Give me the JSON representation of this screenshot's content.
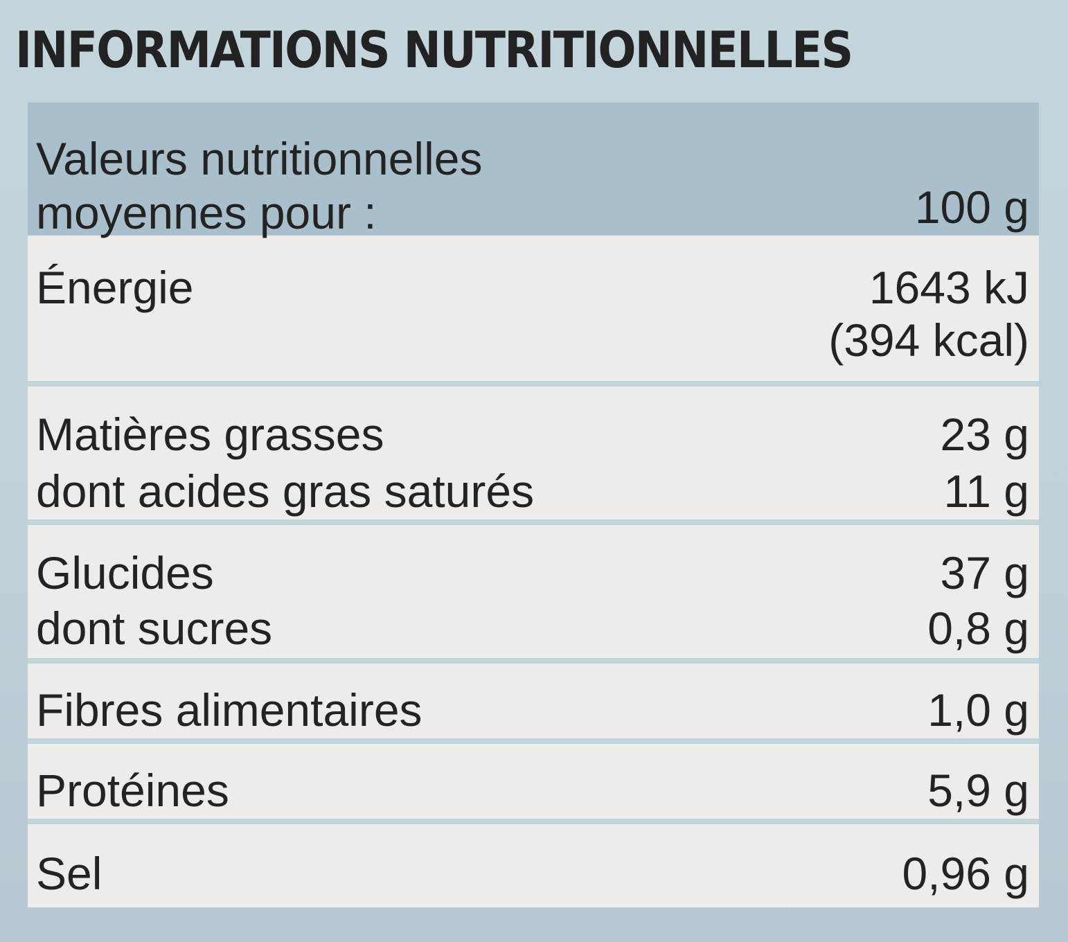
{
  "title": "INFORMATIONS NUTRITIONNELLES",
  "header": {
    "label_line1": "Valeurs nutritionnelles",
    "label_line2": "moyennes pour :",
    "value": "100 g"
  },
  "rows": [
    {
      "label": "Énergie",
      "value_line1": "1643 kJ",
      "value_line2": "(394 kcal)"
    },
    {
      "label": "Matières grasses",
      "value": "23 g"
    },
    {
      "label": "dont acides gras saturés",
      "value": "11 g"
    },
    {
      "label": "Glucides",
      "value": "37 g"
    },
    {
      "label": "dont sucres",
      "value": "0,8 g"
    },
    {
      "label": "Fibres alimentaires",
      "value": "1,0 g"
    },
    {
      "label": "Protéines",
      "value": "5,9 g"
    },
    {
      "label": "Sel",
      "value": "0,96 g"
    }
  ]
}
